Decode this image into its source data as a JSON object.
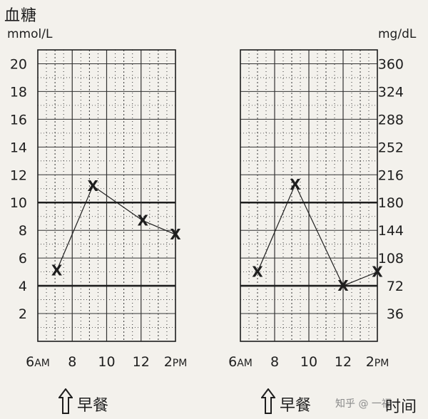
{
  "title": "血糖",
  "left_unit": "mmol/L",
  "right_unit": "mg/dL",
  "meal_label": "早餐",
  "time_label": "时间",
  "watermark": "知乎 @ 一福",
  "colors": {
    "line": "#1e1e1e",
    "grid": "#333333",
    "background": "#f3f1ec"
  },
  "chart_data": [
    {
      "type": "line",
      "title": "",
      "ylabel": "mmol/L",
      "y_ticks": [
        2,
        4,
        6,
        8,
        10,
        12,
        14,
        16,
        18,
        20
      ],
      "ylim": [
        0,
        21
      ],
      "x_ticks": [
        {
          "value": 6,
          "label": "6AM"
        },
        {
          "value": 8,
          "label": "8"
        },
        {
          "value": 10,
          "label": "10"
        },
        {
          "value": 12,
          "label": "12"
        },
        {
          "value": 14,
          "label": "2PM"
        }
      ],
      "xlim": [
        6,
        14
      ],
      "reference_lines": [
        4,
        10
      ],
      "marker": "X",
      "series": [
        {
          "x": [
            7.1,
            9.2,
            12.1,
            14.0
          ],
          "y": [
            5.1,
            11.2,
            8.7,
            7.7
          ]
        }
      ]
    },
    {
      "type": "line",
      "title": "",
      "ylabel": "mg/dL",
      "y_ticks": [
        36,
        72,
        108,
        144,
        180,
        216,
        252,
        288,
        324,
        360
      ],
      "ylim": [
        0,
        21
      ],
      "x_ticks": [
        {
          "value": 6,
          "label": "6AM"
        },
        {
          "value": 8,
          "label": "8"
        },
        {
          "value": 10,
          "label": "10"
        },
        {
          "value": 12,
          "label": "12"
        },
        {
          "value": 14,
          "label": "2PM"
        }
      ],
      "xlim": [
        6,
        14
      ],
      "reference_lines": [
        4,
        10
      ],
      "marker": "X",
      "series": [
        {
          "x": [
            7.0,
            9.2,
            12.0,
            14.0
          ],
          "y": [
            5.0,
            11.3,
            4.0,
            5.0
          ]
        }
      ]
    }
  ]
}
